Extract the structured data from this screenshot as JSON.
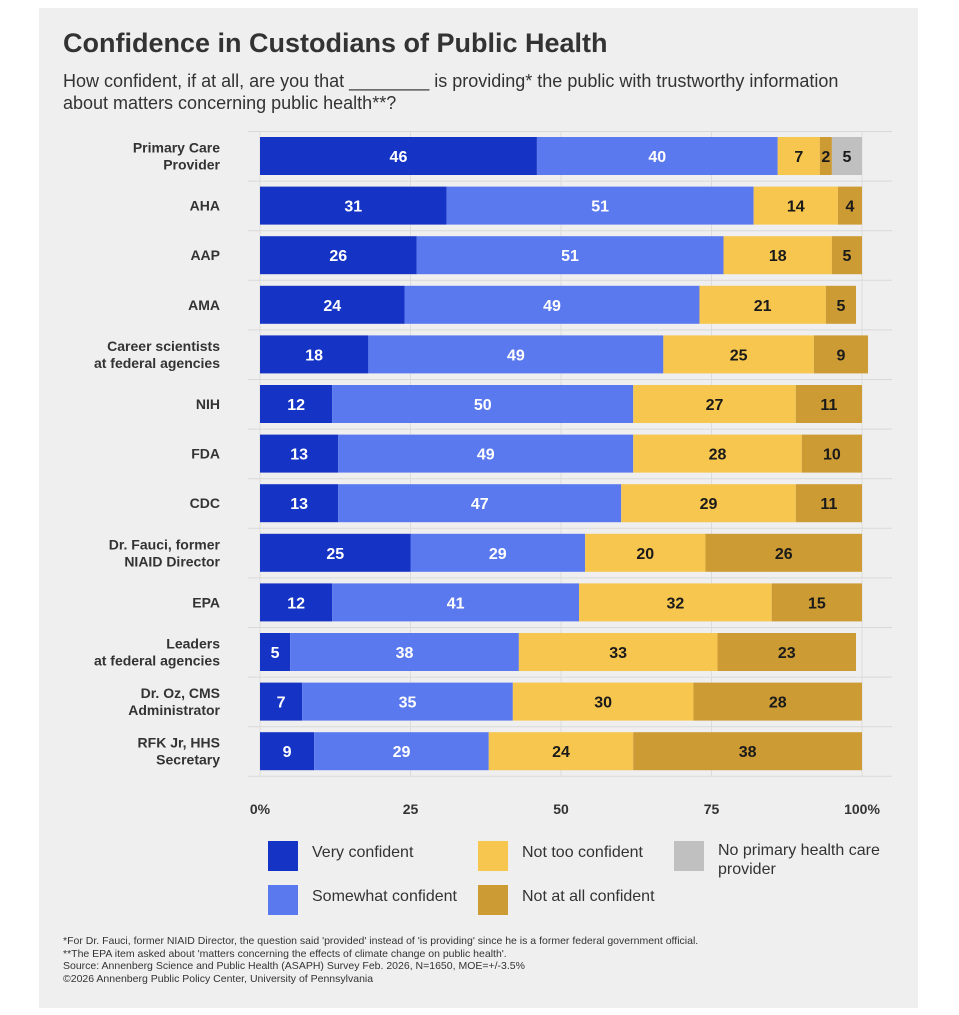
{
  "title": "Confidence in Custodians of Public Health",
  "subtitle": "How confident, if at all, are you that ________ is providing* the public with trustworthy information about matters concerning public health**?",
  "colors": {
    "very_confident": "#1533c4",
    "somewhat_confident": "#5b79ee",
    "not_too_confident": "#f7c64f",
    "not_at_all_confident": "#cc9b34",
    "no_provider": "#c0c0c0",
    "background": "#efefef",
    "text": "#333333"
  },
  "legend": {
    "very": "Very confident",
    "somewhat": "Somewhat confident",
    "not_too": "Not too confident",
    "not_at_all": "Not at all confident",
    "no_provider": "No primary health care provider"
  },
  "notes": [
    "*For Dr. Fauci, former NIAID Director, the question said 'provided' instead of 'is providing' since he is a former federal government official.",
    "**The EPA item asked about 'matters concerning the effects of climate change on public health'.",
    "Source: Annenberg Science and Public Health (ASAPH) Survey Feb. 2026, N=1650, MOE=+/-3.5%",
    "©2026 Annenberg Public Policy Center, University of Pennsylvania"
  ],
  "chart_data": {
    "type": "bar",
    "orientation": "horizontal",
    "stacked": true,
    "categories": [
      [
        "Primary Care",
        "Provider"
      ],
      [
        "AHA"
      ],
      [
        "AAP"
      ],
      [
        "AMA"
      ],
      [
        "Career scientists",
        "at federal agencies"
      ],
      [
        "NIH"
      ],
      [
        "FDA"
      ],
      [
        "CDC"
      ],
      [
        "Dr. Fauci, former",
        "NIAID Director"
      ],
      [
        "EPA"
      ],
      [
        "Leaders",
        "at federal agencies"
      ],
      [
        "Dr. Oz, CMS",
        "Administrator"
      ],
      [
        "RFK Jr, HHS",
        "Secretary"
      ]
    ],
    "series": [
      {
        "name": "Very confident",
        "color_key": "very_confident",
        "label_color": "#ffffff",
        "values": [
          46,
          31,
          26,
          24,
          18,
          12,
          13,
          13,
          25,
          12,
          5,
          7,
          9
        ]
      },
      {
        "name": "Somewhat confident",
        "color_key": "somewhat_confident",
        "label_color": "#ffffff",
        "values": [
          40,
          51,
          51,
          49,
          49,
          50,
          49,
          47,
          29,
          41,
          38,
          35,
          29
        ]
      },
      {
        "name": "Not too confident",
        "color_key": "not_too_confident",
        "label_color": "#1a1a1a",
        "values": [
          7,
          14,
          18,
          21,
          25,
          27,
          28,
          29,
          20,
          32,
          33,
          30,
          24
        ]
      },
      {
        "name": "Not at all confident",
        "color_key": "not_at_all_confident",
        "label_color": "#1a1a1a",
        "values": [
          2,
          4,
          5,
          5,
          9,
          11,
          10,
          11,
          26,
          15,
          23,
          28,
          38
        ]
      },
      {
        "name": "No primary health care provider",
        "color_key": "no_provider",
        "label_color": "#1a1a1a",
        "values": [
          5,
          null,
          null,
          null,
          null,
          null,
          null,
          null,
          null,
          null,
          null,
          null,
          null
        ]
      }
    ],
    "xlim": [
      0,
      100
    ],
    "xticks": [
      0,
      25,
      50,
      75,
      100
    ],
    "xtick_labels": [
      "0%",
      "25",
      "50",
      "75",
      "100%"
    ],
    "grid": true,
    "legend_position": "bottom"
  }
}
